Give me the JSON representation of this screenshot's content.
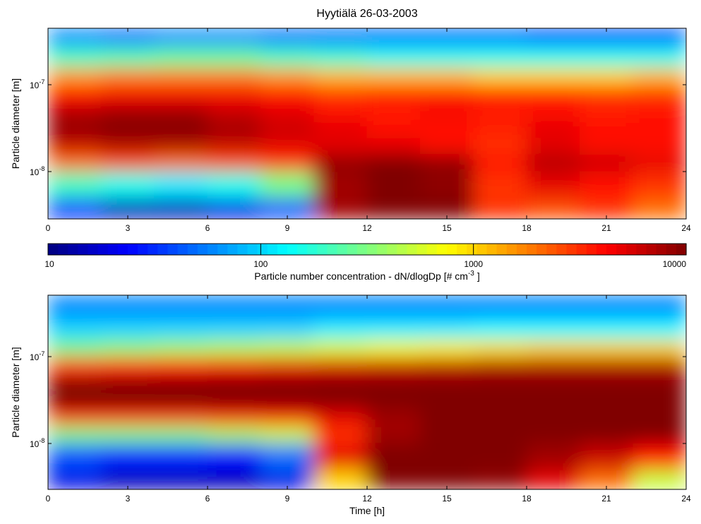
{
  "chart_data": [
    {
      "type": "heatmap",
      "title": "Hyytiälä 26-03-2003",
      "ylabel": "Particle diameter [m]",
      "xlim": [
        0,
        24
      ],
      "xticks": [
        0,
        3,
        6,
        9,
        12,
        15,
        18,
        21,
        24
      ],
      "ylim": [
        2.85e-09,
        4.47e-07
      ],
      "ylog": true,
      "yticks": [
        {
          "value": 1e-08,
          "label": "10",
          "exponent": "-8"
        },
        {
          "value": 1e-07,
          "label": "10",
          "exponent": "-7"
        }
      ],
      "x_edges": [
        0,
        2,
        4,
        6,
        8,
        10,
        12,
        14,
        16,
        18,
        20,
        22,
        24
      ],
      "y_edges": [
        2.85e-09,
        5e-09,
        1e-08,
        1.6e-08,
        2.5e-08,
        4e-08,
        6e-08,
        1e-07,
        1.6e-07,
        2.8e-07,
        4.47e-07
      ],
      "z": [
        [
          30,
          15,
          15,
          20,
          40,
          8000,
          10000,
          10000,
          3000,
          2500,
          3000,
          2000
        ],
        [
          200,
          150,
          120,
          150,
          300,
          8000,
          10000,
          9000,
          3000,
          5000,
          4000,
          3000
        ],
        [
          2000,
          2500,
          2000,
          2500,
          3000,
          9000,
          10000,
          9000,
          4000,
          7000,
          6000,
          5000
        ],
        [
          6000,
          7000,
          7000,
          6000,
          5000,
          5000,
          5000,
          4000,
          3000,
          5000,
          4000,
          4000
        ],
        [
          9000,
          10000,
          10000,
          8000,
          6000,
          5000,
          4000,
          4000,
          3500,
          5000,
          4000,
          4000
        ],
        [
          7000,
          8000,
          8000,
          6000,
          5000,
          4000,
          3500,
          4500,
          3500,
          4000,
          3500,
          4000
        ],
        [
          4000,
          4500,
          4500,
          4500,
          4000,
          3000,
          3500,
          3500,
          3500,
          3500,
          3000,
          3000
        ],
        [
          1500,
          1800,
          1800,
          1800,
          1500,
          1200,
          1200,
          1200,
          1000,
          1000,
          1000,
          1200
        ],
        [
          200,
          220,
          250,
          250,
          200,
          180,
          150,
          150,
          150,
          150,
          150,
          150
        ],
        [
          60,
          50,
          60,
          60,
          50,
          50,
          50,
          50,
          50,
          40,
          40,
          40
        ]
      ],
      "colorbar": {
        "lim": [
          10,
          10000
        ],
        "log": true,
        "colormap": "jet",
        "ticks": [
          10,
          100,
          1000,
          10000
        ],
        "label": "Particle number concentration - dN/dlogDp [# cm",
        "label_exponent": "-3",
        "label_end": "]"
      }
    },
    {
      "type": "heatmap",
      "ylabel": "Particle diameter [m]",
      "xlabel": "Time [h]",
      "xlim": [
        0,
        24
      ],
      "xticks": [
        0,
        3,
        6,
        9,
        12,
        15,
        18,
        21,
        24
      ],
      "ylim": [
        2.96e-09,
        5.1e-07
      ],
      "ylog": true,
      "yticks": [
        {
          "value": 1e-08,
          "label": "10",
          "exponent": "-8"
        },
        {
          "value": 1e-07,
          "label": "10",
          "exponent": "-7"
        }
      ],
      "x_edges": [
        0,
        2,
        4,
        6,
        8,
        10,
        12,
        14,
        16,
        18,
        20,
        22,
        24
      ],
      "y_edges": [
        2.96e-09,
        5e-09,
        1e-08,
        1.6e-08,
        2.5e-08,
        4e-08,
        6e-08,
        1e-07,
        1.6e-07,
        2.8e-07,
        5.1e-07
      ],
      "z": [
        [
          20,
          15,
          15,
          15,
          20,
          1000,
          10000,
          10000,
          9000,
          5000,
          2000,
          500
        ],
        [
          40,
          30,
          30,
          25,
          50,
          5000,
          10000,
          10000,
          10000,
          8000,
          6000,
          4000
        ],
        [
          300,
          300,
          300,
          400,
          500,
          3000,
          8000,
          10000,
          10000,
          10000,
          10000,
          10000
        ],
        [
          3000,
          3000,
          3000,
          3500,
          4000,
          5000,
          8000,
          10000,
          10000,
          10000,
          10000,
          10000
        ],
        [
          10000,
          10000,
          10000,
          10000,
          10000,
          10000,
          10000,
          10000,
          10000,
          10000,
          10000,
          10000
        ],
        [
          10000,
          10000,
          10000,
          10000,
          10000,
          10000,
          10000,
          10000,
          10000,
          10000,
          10000,
          10000
        ],
        [
          3000,
          3500,
          4000,
          4500,
          5000,
          5500,
          6000,
          6500,
          7000,
          7000,
          7000,
          7000
        ],
        [
          300,
          350,
          400,
          450,
          500,
          600,
          700,
          800,
          900,
          1000,
          1000,
          1000
        ],
        [
          100,
          100,
          100,
          100,
          100,
          120,
          120,
          120,
          130,
          130,
          130,
          130
        ],
        [
          60,
          60,
          60,
          60,
          60,
          60,
          60,
          60,
          60,
          60,
          60,
          60
        ]
      ]
    }
  ]
}
